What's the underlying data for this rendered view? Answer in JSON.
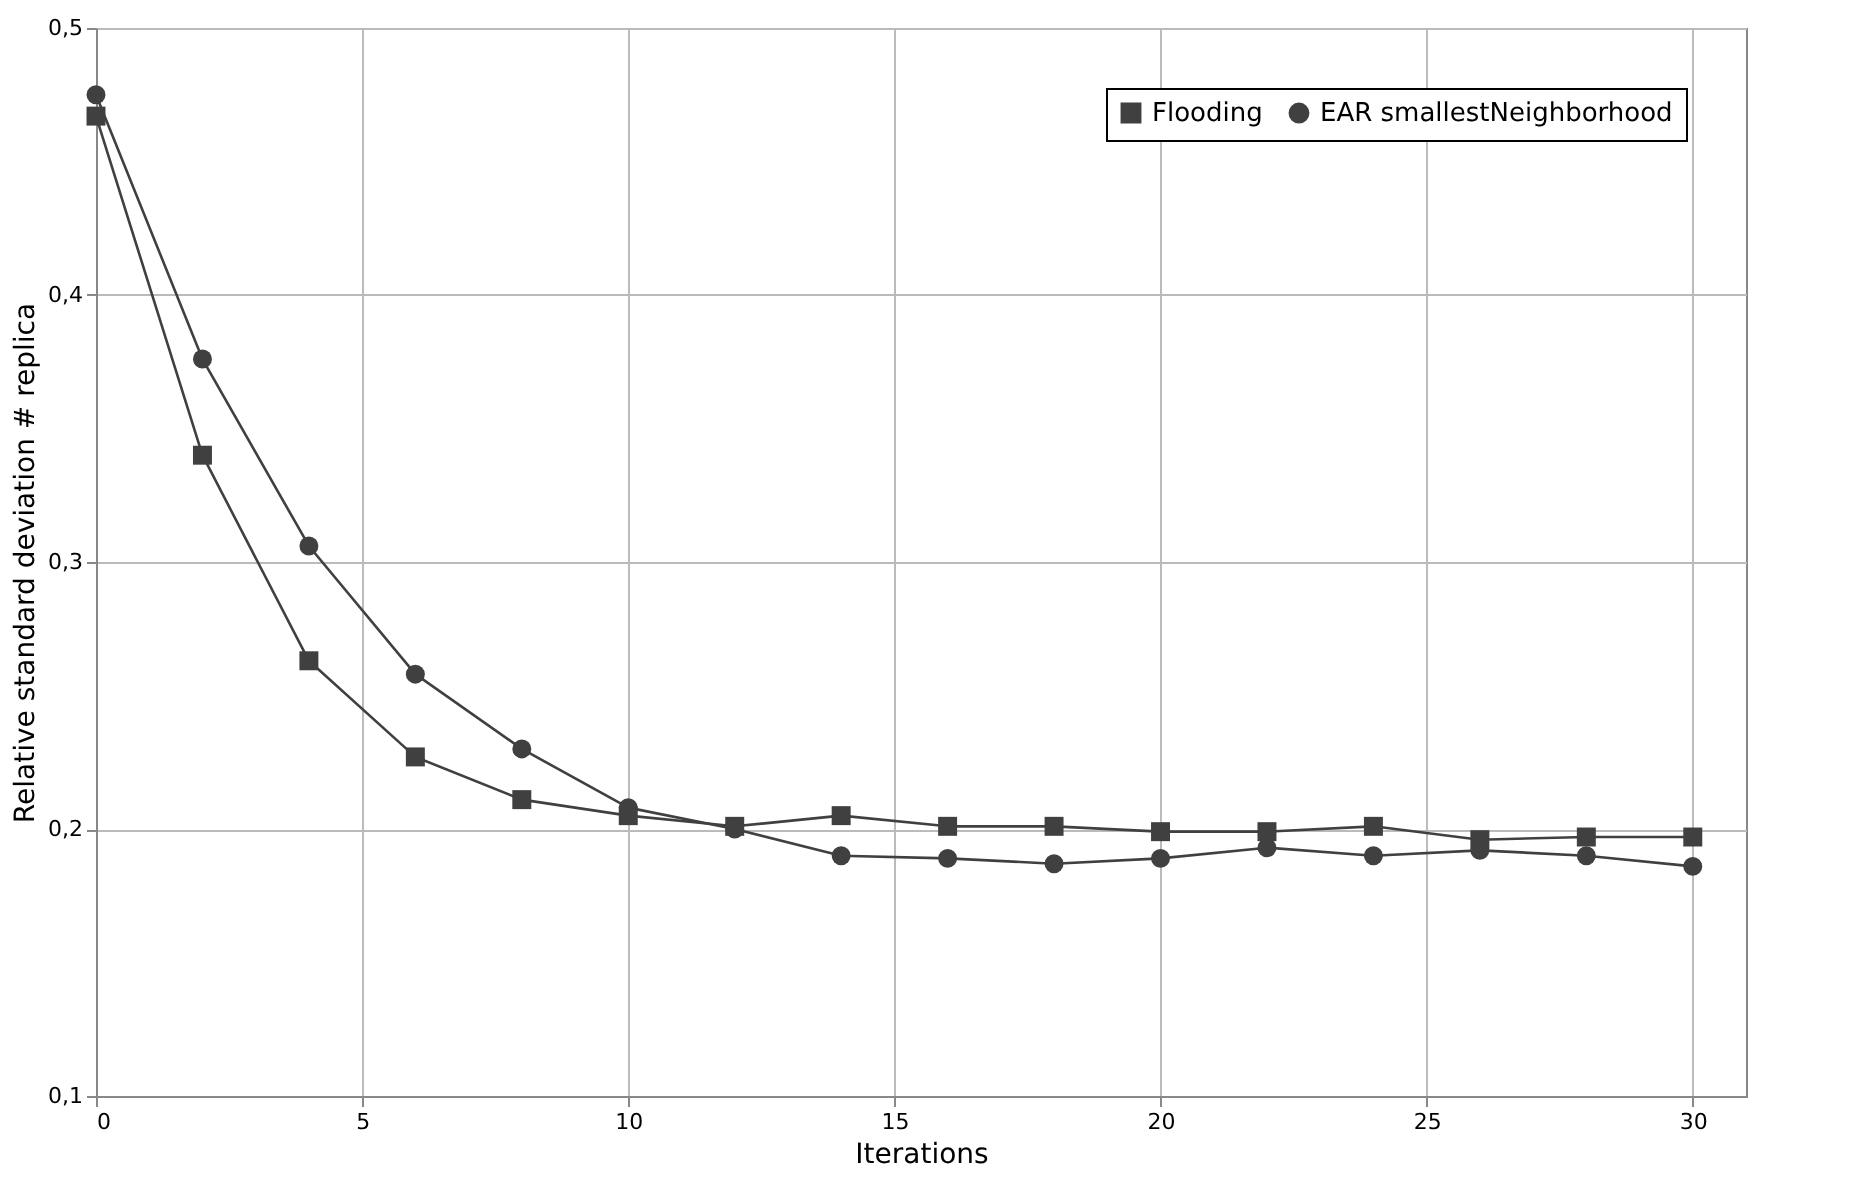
{
  "chart_data": {
    "type": "line",
    "xlabel": "Iterations",
    "ylabel": "Relative standard deviation # replica",
    "x": [
      0,
      2,
      4,
      6,
      8,
      10,
      12,
      14,
      16,
      18,
      20,
      22,
      24,
      26,
      28,
      30
    ],
    "series": [
      {
        "name": "Flooding",
        "color": "#404040",
        "marker": "square",
        "values": [
          0.467,
          0.34,
          0.263,
          0.227,
          0.211,
          0.205,
          0.201,
          0.205,
          0.201,
          0.201,
          0.199,
          0.199,
          0.201,
          0.196,
          0.197,
          0.197
        ]
      },
      {
        "name": "EAR smallestNeighborhood",
        "color": "#404040",
        "marker": "circle",
        "values": [
          0.475,
          0.376,
          0.306,
          0.258,
          0.23,
          0.208,
          0.2,
          0.19,
          0.189,
          0.187,
          0.189,
          0.193,
          0.19,
          0.192,
          0.19,
          0.186
        ]
      }
    ],
    "xlim": [
      0,
      31
    ],
    "xticks": [
      0,
      5,
      10,
      15,
      20,
      25,
      30
    ],
    "ylim": [
      0.1,
      0.5
    ],
    "yticks": [
      {
        "value": 0.1,
        "label": "0,1"
      },
      {
        "value": 0.2,
        "label": "0,2"
      },
      {
        "value": 0.3,
        "label": "0,3"
      },
      {
        "value": 0.4,
        "label": "0,4"
      },
      {
        "value": 0.5,
        "label": "0,5"
      }
    ],
    "grid": true,
    "legend": "top right",
    "line_style": "solid"
  }
}
